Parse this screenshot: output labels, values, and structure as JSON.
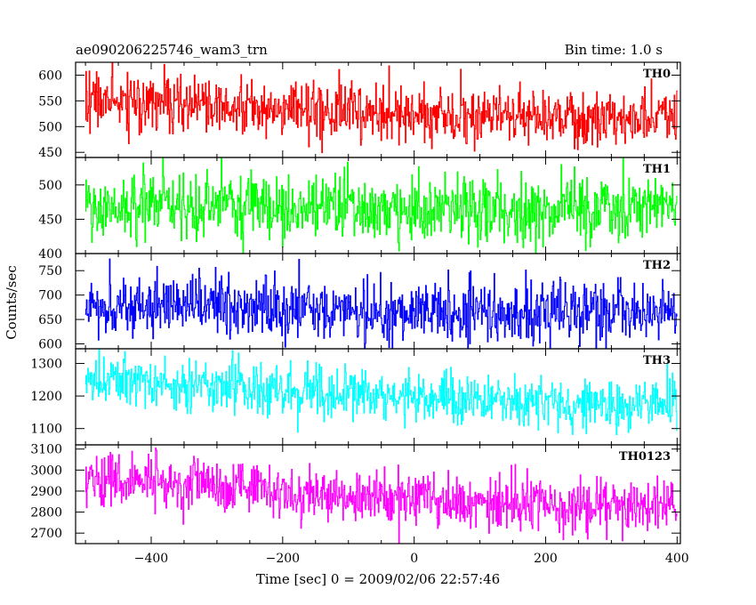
{
  "chart_data": {
    "type": "line",
    "title": "ae090206225746_wam3_trn",
    "bin_time": "Bin time: 1.0 s",
    "xlabel": "Time [sec] 0 = 2009/02/06 22:57:46",
    "ylabel": "Counts/sec",
    "xlim": [
      -515,
      405
    ],
    "x_ticks": [
      -400,
      -200,
      0,
      200,
      400
    ],
    "x_sample": [
      -500,
      400,
      1
    ],
    "grid": false,
    "panels": [
      {
        "name": "TH0",
        "color": "#ff0000",
        "ylim": [
          440,
          625
        ],
        "yticks": [
          450,
          500,
          550,
          600
        ],
        "x_knots": [
          -500,
          -300,
          -100,
          100,
          300,
          400
        ],
        "mean": [
          550,
          540,
          530,
          520,
          518,
          520
        ],
        "noise_sd": 28
      },
      {
        "name": "TH1",
        "color": "#00ff00",
        "ylim": [
          400,
          540
        ],
        "yticks": [
          400,
          450,
          500
        ],
        "x_knots": [
          -500,
          -300,
          -100,
          100,
          300,
          400
        ],
        "mean": [
          470,
          468,
          466,
          464,
          465,
          466
        ],
        "noise_sd": 24
      },
      {
        "name": "TH2",
        "color": "#0000ff",
        "ylim": [
          590,
          785
        ],
        "yticks": [
          600,
          650,
          700,
          750
        ],
        "x_knots": [
          -500,
          -300,
          -100,
          100,
          300,
          400
        ],
        "mean": [
          678,
          675,
          672,
          668,
          665,
          665
        ],
        "noise_sd": 32
      },
      {
        "name": "TH3",
        "color": "#00ffff",
        "ylim": [
          1050,
          1345
        ],
        "yticks": [
          1100,
          1200,
          1300
        ],
        "x_knots": [
          -500,
          -300,
          -100,
          100,
          300,
          400
        ],
        "mean": [
          1250,
          1230,
          1205,
          1185,
          1175,
          1170
        ],
        "noise_sd": 38
      },
      {
        "name": "TH0123",
        "color": "#ff00ff",
        "ylim": [
          2650,
          3120
        ],
        "yticks": [
          2700,
          2800,
          2900,
          3000,
          3100
        ],
        "x_knots": [
          -500,
          -300,
          -100,
          100,
          300,
          400
        ],
        "mean": [
          2960,
          2920,
          2880,
          2840,
          2830,
          2840
        ],
        "noise_sd": 60
      }
    ]
  }
}
